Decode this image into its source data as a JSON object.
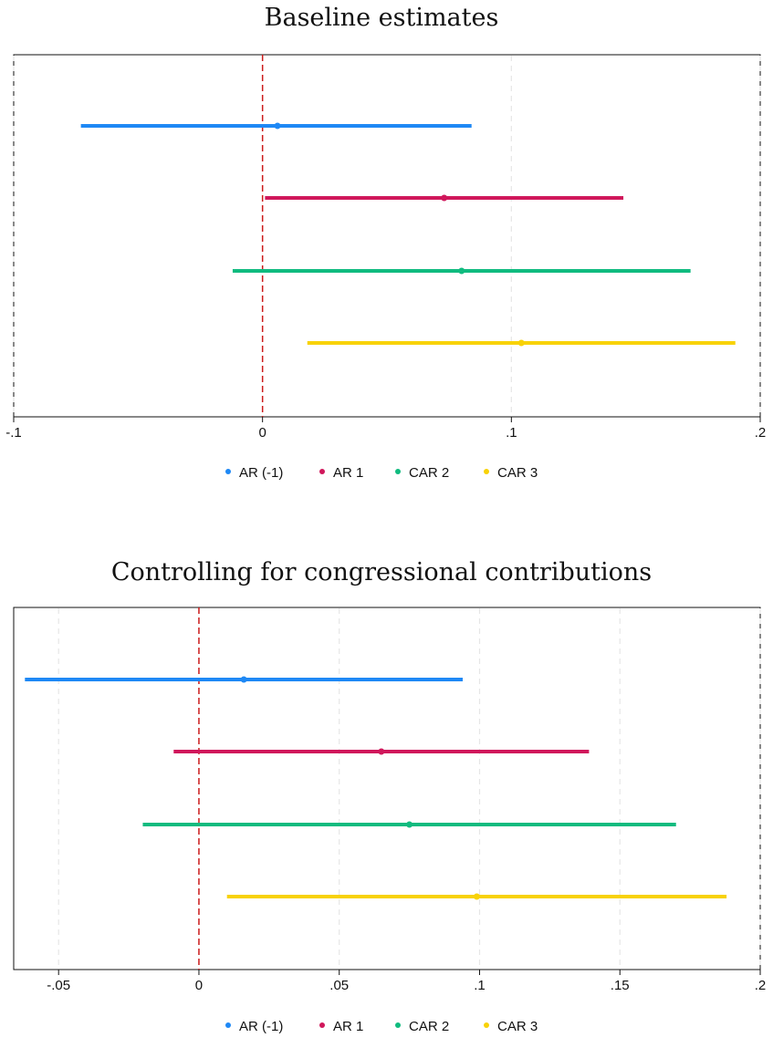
{
  "chart_data": [
    {
      "type": "scatter",
      "subtype": "coefficient-plot",
      "title": "Baseline estimates",
      "xlabel": "",
      "ylabel": "",
      "xlim": [
        -0.1,
        0.2
      ],
      "xticks": [
        -0.1,
        0,
        0.1,
        0.2
      ],
      "xtick_labels": [
        "-.1",
        "0",
        ".1",
        ".2"
      ],
      "reference_line": 0,
      "grid": true,
      "legend_position": "bottom",
      "series": [
        {
          "name": "AR (-1)",
          "estimate": 0.006,
          "ci_low": -0.073,
          "ci_high": 0.084,
          "color": "#1e88f5"
        },
        {
          "name": "AR 1",
          "estimate": 0.073,
          "ci_low": 0.001,
          "ci_high": 0.145,
          "color": "#d0175b"
        },
        {
          "name": "CAR 2",
          "estimate": 0.08,
          "ci_low": -0.012,
          "ci_high": 0.172,
          "color": "#10bb7f"
        },
        {
          "name": "CAR 3",
          "estimate": 0.104,
          "ci_low": 0.018,
          "ci_high": 0.19,
          "color": "#f8d206"
        }
      ]
    },
    {
      "type": "scatter",
      "subtype": "coefficient-plot",
      "title": "Controlling for congressional contributions",
      "xlabel": "",
      "ylabel": "",
      "xlim": [
        -0.066,
        0.2
      ],
      "xticks": [
        -0.05,
        0,
        0.05,
        0.1,
        0.15,
        0.2
      ],
      "xtick_labels": [
        "-.05",
        "0",
        ".05",
        ".1",
        ".15",
        ".2"
      ],
      "reference_line": 0,
      "grid": true,
      "legend_position": "bottom",
      "series": [
        {
          "name": "AR (-1)",
          "estimate": 0.016,
          "ci_low": -0.062,
          "ci_high": 0.094,
          "color": "#1e88f5"
        },
        {
          "name": "AR 1",
          "estimate": 0.065,
          "ci_low": -0.009,
          "ci_high": 0.139,
          "color": "#d0175b"
        },
        {
          "name": "CAR 2",
          "estimate": 0.075,
          "ci_low": -0.02,
          "ci_high": 0.17,
          "color": "#10bb7f"
        },
        {
          "name": "CAR 3",
          "estimate": 0.099,
          "ci_low": 0.01,
          "ci_high": 0.188,
          "color": "#f8d206"
        }
      ]
    }
  ]
}
